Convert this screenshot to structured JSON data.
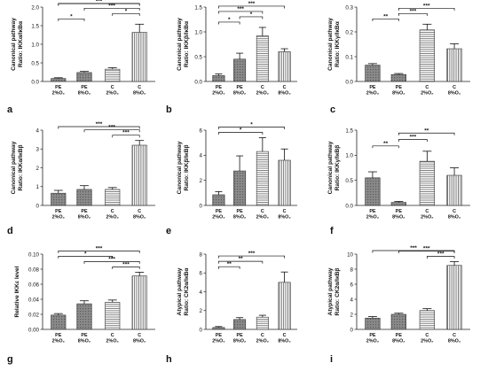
{
  "categories": [
    [
      "PE",
      "2%O₂"
    ],
    [
      "PE",
      "8%O₂"
    ],
    [
      "C",
      "2%O₂"
    ],
    [
      "C",
      "8%O₂"
    ]
  ],
  "chart_data": [
    {
      "type": "bar",
      "panel_label": "a",
      "ylabel": [
        "Canonical pathway",
        "Ratio: IKKα/IκBα"
      ],
      "ylim": [
        0,
        2.0
      ],
      "yticks": [
        "0.0",
        "0.5",
        "1.0",
        "1.5",
        "2.0"
      ],
      "values": [
        0.08,
        0.24,
        0.33,
        1.32
      ],
      "errors": [
        0.02,
        0.03,
        0.04,
        0.22
      ],
      "sig": [
        {
          "a": 0,
          "b": 1,
          "label": "*"
        },
        {
          "a": 0,
          "b": 3,
          "label": "***"
        },
        {
          "a": 1,
          "b": 3,
          "label": "***"
        },
        {
          "a": 2,
          "b": 3,
          "label": "*"
        },
        {
          "a": 0,
          "b": 3,
          "label": "***"
        }
      ]
    },
    {
      "type": "bar",
      "panel_label": "b",
      "ylabel": [
        "Canonical pathway",
        "Ratio: IKKβ/IκBα"
      ],
      "ylim": [
        0,
        1.5
      ],
      "yticks": [
        "0.0",
        "0.5",
        "1.0",
        "1.5"
      ],
      "values": [
        0.12,
        0.45,
        0.92,
        0.6
      ],
      "errors": [
        0.03,
        0.12,
        0.17,
        0.06
      ],
      "sig": [
        {
          "a": 0,
          "b": 1,
          "label": "*"
        },
        {
          "a": 1,
          "b": 2,
          "label": "*"
        },
        {
          "a": 0,
          "b": 2,
          "label": "***"
        },
        {
          "a": 0,
          "b": 3,
          "label": "***"
        }
      ]
    },
    {
      "type": "bar",
      "panel_label": "c",
      "ylabel": [
        "Canonical pathway",
        "Ratio: IKKγ/IκBα"
      ],
      "ylim": [
        0,
        0.3
      ],
      "yticks": [
        "0.0",
        "0.1",
        "0.2",
        "0.3"
      ],
      "values": [
        0.066,
        0.028,
        0.208,
        0.132
      ],
      "errors": [
        0.006,
        0.004,
        0.023,
        0.02
      ],
      "sig": [
        {
          "a": 0,
          "b": 1,
          "label": "**"
        },
        {
          "a": 1,
          "b": 2,
          "label": "***"
        },
        {
          "a": 1,
          "b": 3,
          "label": "***"
        }
      ]
    },
    {
      "type": "bar",
      "panel_label": "d",
      "ylabel": [
        "Canonical pathway",
        "Ratio: IKKα/IκBβ"
      ],
      "ylim": [
        0,
        4
      ],
      "yticks": [
        "0",
        "1",
        "2",
        "3",
        "4"
      ],
      "values": [
        0.65,
        0.85,
        0.85,
        3.2
      ],
      "errors": [
        0.15,
        0.2,
        0.1,
        0.25
      ],
      "sig": [
        {
          "a": 2,
          "b": 3,
          "label": "***"
        },
        {
          "a": 1,
          "b": 3,
          "label": "***"
        },
        {
          "a": 0,
          "b": 3,
          "label": "***"
        }
      ]
    },
    {
      "type": "bar",
      "panel_label": "e",
      "ylabel": [
        "Canonical pathway",
        "Ratio: IKKβ/IκBβ"
      ],
      "ylim": [
        0,
        6
      ],
      "yticks": [
        "0",
        "2",
        "4",
        "6"
      ],
      "values": [
        0.85,
        2.75,
        4.3,
        3.6
      ],
      "errors": [
        0.25,
        1.2,
        1.1,
        0.9
      ],
      "sig": [
        {
          "a": 0,
          "b": 2,
          "label": "*"
        },
        {
          "a": 0,
          "b": 3,
          "label": "*"
        }
      ]
    },
    {
      "type": "bar",
      "panel_label": "f",
      "ylabel": [
        "Canonical pathway",
        "Ratio: IKKγ/IκBβ"
      ],
      "ylim": [
        0,
        1.5
      ],
      "yticks": [
        "0.0",
        "0.5",
        "1.0",
        "1.5"
      ],
      "values": [
        0.55,
        0.06,
        0.88,
        0.6
      ],
      "errors": [
        0.12,
        0.02,
        0.2,
        0.15
      ],
      "sig": [
        {
          "a": 0,
          "b": 1,
          "label": "**"
        },
        {
          "a": 1,
          "b": 2,
          "label": "***"
        },
        {
          "a": 1,
          "b": 3,
          "label": "**"
        }
      ]
    },
    {
      "type": "bar",
      "panel_label": "g",
      "ylabel": [
        "Relative IKKε level"
      ],
      "ylim": [
        0,
        0.1
      ],
      "yticks": [
        "0.00",
        "0.02",
        "0.04",
        "0.06",
        "0.08",
        "0.10"
      ],
      "values": [
        0.019,
        0.034,
        0.036,
        0.071
      ],
      "errors": [
        0.002,
        0.004,
        0.003,
        0.005
      ],
      "sig": [
        {
          "a": 2,
          "b": 3,
          "label": "***"
        },
        {
          "a": 1,
          "b": 3,
          "label": "***"
        },
        {
          "a": 0,
          "b": 2,
          "label": "*"
        },
        {
          "a": 0,
          "b": 3,
          "label": "***"
        }
      ]
    },
    {
      "type": "bar",
      "panel_label": "h",
      "ylabel": [
        "Atypical pathway",
        "Ratio: CK2α/IκBα"
      ],
      "ylim": [
        0,
        8
      ],
      "yticks": [
        "0",
        "2",
        "4",
        "6",
        "8"
      ],
      "values": [
        0.2,
        1.05,
        1.3,
        5.0
      ],
      "errors": [
        0.1,
        0.2,
        0.2,
        1.1
      ],
      "sig": [
        {
          "a": 0,
          "b": 1,
          "label": "**"
        },
        {
          "a": 0,
          "b": 2,
          "label": "**"
        },
        {
          "a": 0,
          "b": 3,
          "label": "***"
        }
      ]
    },
    {
      "type": "bar",
      "panel_label": "i",
      "ylabel": [
        "Atypical pathway",
        "Ratio: CK2α/IκBβ"
      ],
      "ylim": [
        0,
        10
      ],
      "yticks": [
        "0",
        "2",
        "4",
        "6",
        "8",
        "10"
      ],
      "values": [
        1.5,
        2.0,
        2.5,
        8.5
      ],
      "errors": [
        0.2,
        0.15,
        0.25,
        0.5
      ],
      "sig": [
        {
          "a": 2,
          "b": 3,
          "label": "***"
        },
        {
          "a": 1,
          "b": 3,
          "label": "***"
        },
        {
          "a": 0,
          "b": 3,
          "label": "***"
        }
      ]
    }
  ]
}
